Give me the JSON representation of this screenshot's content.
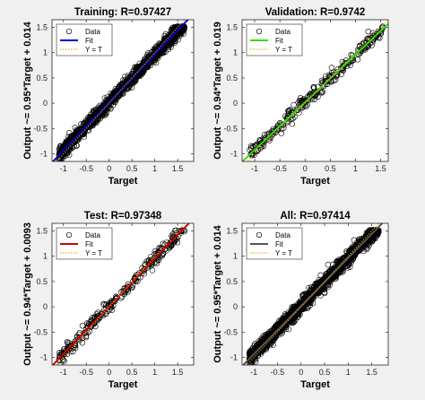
{
  "figure": {
    "background": "#f0f0f0",
    "axes_background": "#ffffff"
  },
  "chart_data": [
    {
      "type": "scatter",
      "title": "Training: R=0.97427",
      "xlabel": "Target",
      "ylabel": "Output ~= 0.95*Target + 0.014",
      "xlim": [
        -1.25,
        1.85
      ],
      "ylim": [
        -1.15,
        1.65
      ],
      "xticks": [
        "-1",
        "-0.5",
        "0",
        "0.5",
        "1",
        "1.5"
      ],
      "yticks": [
        "-1",
        "-0.5",
        "0",
        "0.5",
        "1",
        "1.5"
      ],
      "grid": false,
      "legend_position": "top-left",
      "fit": {
        "slope": 0.95,
        "intercept": 0.014,
        "color": "#0000cc"
      },
      "identity_line_color": "#e0a000",
      "marker": "open-circle",
      "point_count_estimate": 1300,
      "point_spread_estimate": 0.07,
      "series": [
        {
          "name": "Data",
          "role": "data"
        },
        {
          "name": "Fit",
          "role": "fit"
        },
        {
          "name": "Y = T",
          "role": "identity"
        }
      ]
    },
    {
      "type": "scatter",
      "title": "Validation: R=0.9742",
      "xlabel": "Target",
      "ylabel": "Output ~= 0.94*Target + 0.019",
      "xlim": [
        -1.25,
        1.65
      ],
      "ylim": [
        -1.15,
        1.65
      ],
      "xticks": [
        "-1",
        "-0.5",
        "0",
        "0.5",
        "1",
        "1.5"
      ],
      "yticks": [
        "-1",
        "-0.5",
        "0",
        "0.5",
        "1",
        "1.5"
      ],
      "grid": false,
      "legend_position": "top-left",
      "fit": {
        "slope": 0.94,
        "intercept": 0.019,
        "color": "#33dd00"
      },
      "identity_line_color": "#e0a000",
      "marker": "open-circle",
      "point_count_estimate": 280,
      "point_spread_estimate": 0.07,
      "series": [
        {
          "name": "Data",
          "role": "data"
        },
        {
          "name": "Fit",
          "role": "fit"
        },
        {
          "name": "Y = T",
          "role": "identity"
        }
      ]
    },
    {
      "type": "scatter",
      "title": "Test: R=0.97348",
      "xlabel": "Target",
      "ylabel": "Output ~= 0.94*Target + 0.0093",
      "xlim": [
        -1.25,
        1.85
      ],
      "ylim": [
        -1.15,
        1.65
      ],
      "xticks": [
        "-1",
        "-0.5",
        "0",
        "0.5",
        "1",
        "1.5"
      ],
      "yticks": [
        "-1",
        "-0.5",
        "0",
        "0.5",
        "1",
        "1.5"
      ],
      "grid": false,
      "legend_position": "top-left",
      "fit": {
        "slope": 0.94,
        "intercept": 0.0093,
        "color": "#cc0000"
      },
      "identity_line_color": "#e0a000",
      "marker": "open-circle",
      "point_count_estimate": 280,
      "point_spread_estimate": 0.07,
      "series": [
        {
          "name": "Data",
          "role": "data"
        },
        {
          "name": "Fit",
          "role": "fit"
        },
        {
          "name": "Y = T",
          "role": "identity"
        }
      ]
    },
    {
      "type": "scatter",
      "title": "All: R=0.97414",
      "xlabel": "Target",
      "ylabel": "Output ~= 0.95*Target + 0.014",
      "xlim": [
        -1.25,
        1.85
      ],
      "ylim": [
        -1.15,
        1.65
      ],
      "xticks": [
        "-1",
        "-0.5",
        "0",
        "0.5",
        "1",
        "1.5"
      ],
      "yticks": [
        "-1",
        "-0.5",
        "0",
        "0.5",
        "1",
        "1.5"
      ],
      "grid": false,
      "legend_position": "top-left",
      "fit": {
        "slope": 0.95,
        "intercept": 0.014,
        "color": "#555555"
      },
      "identity_line_color": "#e0a000",
      "marker": "open-circle",
      "point_count_estimate": 1700,
      "point_spread_estimate": 0.07,
      "series": [
        {
          "name": "Data",
          "role": "data"
        },
        {
          "name": "Fit",
          "role": "fit"
        },
        {
          "name": "Y = T",
          "role": "identity"
        }
      ]
    }
  ]
}
